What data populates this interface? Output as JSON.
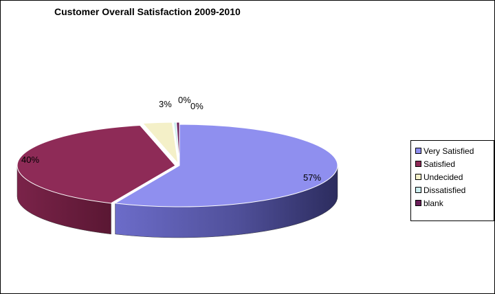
{
  "chart_data": {
    "type": "pie",
    "title": "Customer Overall Satisfaction 2009-2010",
    "slices": [
      {
        "label": "Very Satisfied",
        "value": 57,
        "value_label": "57%",
        "color": "#8f8fef"
      },
      {
        "label": "Satisfied",
        "value": 40,
        "value_label": "40%",
        "color": "#8e2b57"
      },
      {
        "label": "Undecided",
        "value": 3,
        "value_label": "3%",
        "color": "#f4f0c8"
      },
      {
        "label": "Dissatisfied",
        "value": 0.3,
        "value_label": "0%",
        "color": "#cdeef0"
      },
      {
        "label": "blank",
        "value": 0.3,
        "value_label": "0%",
        "color": "#6b1f5a"
      }
    ],
    "legend_position": "right",
    "style": "3d-pie"
  }
}
